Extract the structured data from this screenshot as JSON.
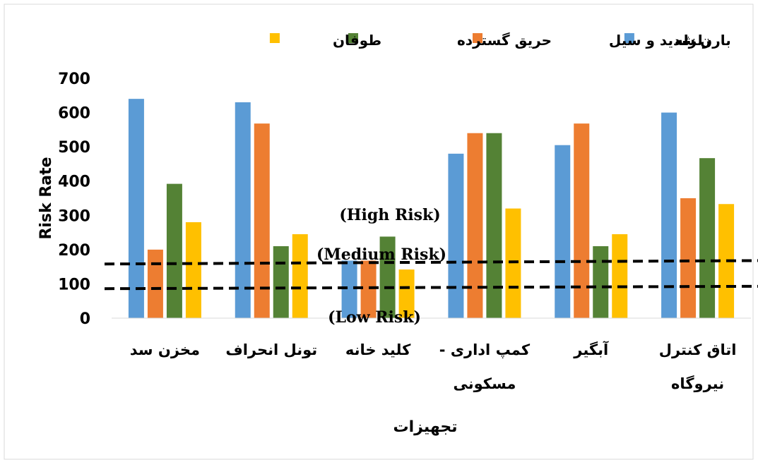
{
  "chart_data": {
    "type": "bar",
    "categories": [
      [
        "مخزن سد"
      ],
      [
        "تونل انحراف"
      ],
      [
        "کلید خانه"
      ],
      [
        "کمپ اداری -",
        "مسکونی"
      ],
      [
        "آبگیر"
      ],
      [
        "اتاق کنترل",
        "نیروگاه"
      ]
    ],
    "series": [
      {
        "name": "زلزله",
        "color": "#5B9BD5",
        "values": [
          640,
          630,
          168,
          480,
          505,
          600
        ]
      },
      {
        "name": "بارن شدید و سیل",
        "color": "#ED7D31",
        "values": [
          200,
          568,
          168,
          540,
          568,
          350
        ]
      },
      {
        "name": "حریق گسترده",
        "color": "#548235",
        "values": [
          392,
          210,
          238,
          540,
          210,
          467
        ]
      },
      {
        "name": "طوفان",
        "color": "#FFC000",
        "values": [
          280,
          245,
          142,
          320,
          245,
          333
        ]
      }
    ],
    "ylabel": "Risk Rate",
    "xlabel": "تجهیزات",
    "ylim": [
      0,
      700
    ],
    "yticks": [
      0,
      100,
      200,
      300,
      400,
      500,
      600,
      700
    ],
    "grid": false,
    "legend_position": "top",
    "thresholds": [
      {
        "label": "(Medium Risk)",
        "from": 158,
        "to": 168
      },
      {
        "label": "(Low Risk)",
        "from": 86,
        "to": 93
      }
    ],
    "zone_labels": [
      "(High Risk)",
      "(Medium Risk)",
      "(Low Risk)"
    ]
  }
}
